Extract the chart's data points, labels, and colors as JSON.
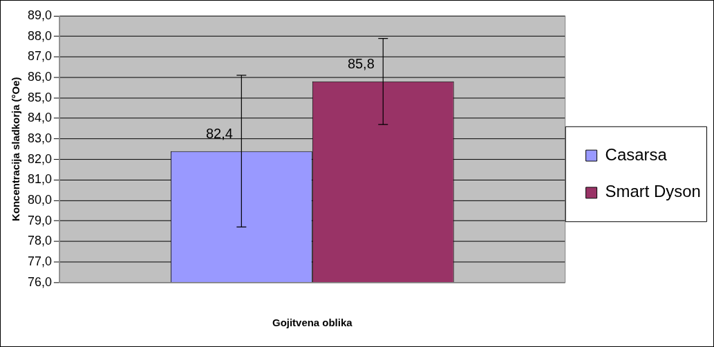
{
  "chart_data": {
    "type": "bar",
    "xlabel": "Gojitvena oblika",
    "ylabel": "Koncentracija sladkorja (°Oe)",
    "categories": [
      null
    ],
    "series": [
      {
        "name": "Casarsa",
        "color": "#9999ff",
        "values": [
          82.4
        ],
        "errors": [
          3.7
        ],
        "value_labels": [
          "82,4"
        ]
      },
      {
        "name": "Smart Dyson",
        "color": "#993366",
        "values": [
          85.8
        ],
        "errors": [
          2.1
        ],
        "value_labels": [
          "85,8"
        ]
      }
    ],
    "ylim": [
      76,
      89
    ],
    "yticks": [
      {
        "value": 76,
        "label": "76,0"
      },
      {
        "value": 77,
        "label": "77,0"
      },
      {
        "value": 78,
        "label": "78,0"
      },
      {
        "value": 79,
        "label": "79,0"
      },
      {
        "value": 80,
        "label": "80,0"
      },
      {
        "value": 81,
        "label": "81,0"
      },
      {
        "value": 82,
        "label": "82,0"
      },
      {
        "value": 83,
        "label": "83,0"
      },
      {
        "value": 84,
        "label": "84,0"
      },
      {
        "value": 85,
        "label": "85,0"
      },
      {
        "value": 86,
        "label": "86,0"
      },
      {
        "value": 87,
        "label": "87,0"
      },
      {
        "value": 88,
        "label": "88,0"
      },
      {
        "value": 89,
        "label": "89,0"
      }
    ],
    "grid": "y",
    "legend": "right"
  }
}
